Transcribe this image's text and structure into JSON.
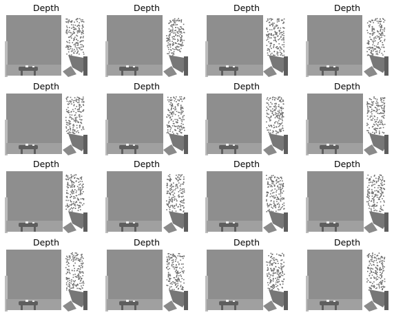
{
  "figure": {
    "panels": [
      {
        "title": "Depth"
      },
      {
        "title": "Depth"
      },
      {
        "title": "Depth"
      },
      {
        "title": "Depth"
      },
      {
        "title": "Depth"
      },
      {
        "title": "Depth"
      },
      {
        "title": "Depth"
      },
      {
        "title": "Depth"
      },
      {
        "title": "Depth"
      },
      {
        "title": "Depth"
      },
      {
        "title": "Depth"
      },
      {
        "title": "Depth"
      },
      {
        "title": "Depth"
      },
      {
        "title": "Depth"
      },
      {
        "title": "Depth"
      },
      {
        "title": "Depth"
      }
    ],
    "colors": {
      "wall": "#8e8e8e",
      "background": "#ffffff",
      "edge": "#bcbcbc",
      "dots": "#6e6e6e",
      "floor": "#a0a0a0",
      "table": "#5e5e5e",
      "highlight": "#f2f2f2"
    }
  }
}
